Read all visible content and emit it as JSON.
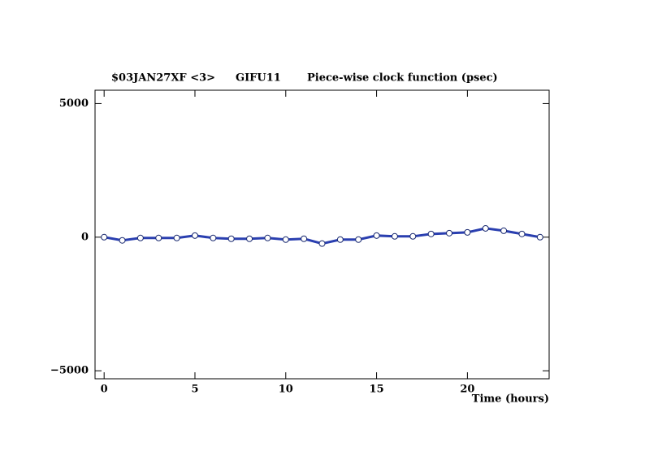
{
  "chart_data": {
    "type": "line",
    "title_parts": [
      "$03JAN27XF <3>",
      "GIFU11",
      "Piece-wise clock function (psec)"
    ],
    "xlabel": "Time (hours)",
    "x": [
      0,
      1,
      2,
      3,
      4,
      5,
      6,
      7,
      8,
      9,
      10,
      11,
      12,
      13,
      14,
      15,
      16,
      17,
      18,
      19,
      20,
      21,
      22,
      23,
      24
    ],
    "series": [
      {
        "color": "#2a3fb0",
        "values": [
          0,
          -120,
          -30,
          -30,
          -30,
          60,
          -30,
          -60,
          -60,
          -30,
          -90,
          -60,
          -240,
          -90,
          -90,
          60,
          30,
          30,
          120,
          150,
          180,
          330,
          240,
          120,
          0
        ]
      }
    ],
    "xlim": [
      -0.5,
      24.5
    ],
    "xticks": [
      0,
      5,
      10,
      15,
      20
    ],
    "ylim": [
      -5300,
      5500
    ],
    "yticks": [
      {
        "value": -5000,
        "label": "−5000"
      },
      0,
      5000
    ]
  }
}
